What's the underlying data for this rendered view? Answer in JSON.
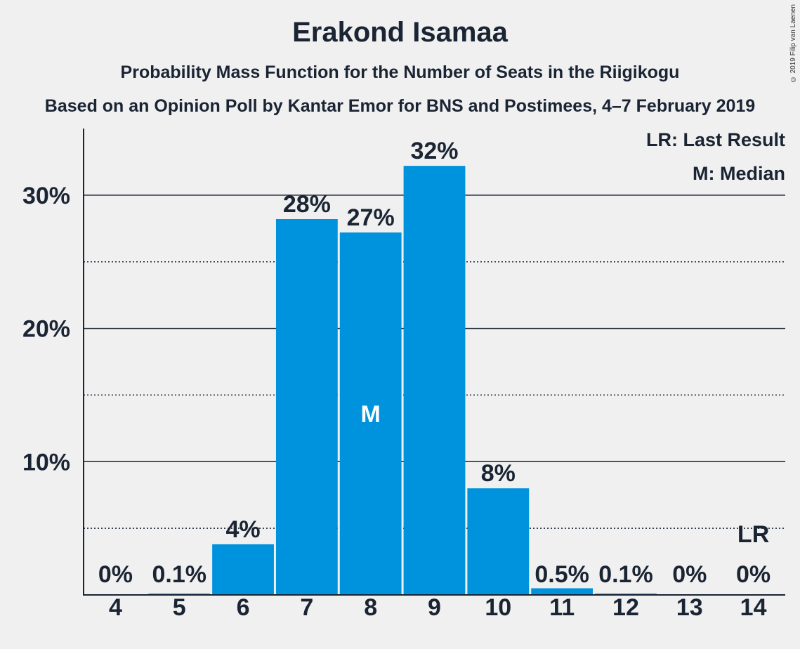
{
  "chart_data": {
    "type": "bar",
    "title": "Erakond Isamaa",
    "subtitle": "Probability Mass Function for the Number of Seats in the Riigikogu",
    "subtitle2": "Based on an Opinion Poll by Kantar Emor for BNS and Postimees, 4–7 February 2019",
    "categories": [
      "4",
      "5",
      "6",
      "7",
      "8",
      "9",
      "10",
      "11",
      "12",
      "13",
      "14"
    ],
    "values": [
      0,
      0.1,
      3.8,
      28.2,
      27.2,
      32.2,
      8.0,
      0.5,
      0.1,
      0,
      0
    ],
    "labels": [
      "0%",
      "0.1%",
      "4%",
      "28%",
      "27%",
      "32%",
      "8%",
      "0.5%",
      "0.1%",
      "0%",
      "0%"
    ],
    "ylim": [
      0,
      35
    ],
    "yticks": [
      10,
      20,
      30
    ],
    "ytick_labels": [
      "10%",
      "20%",
      "30%"
    ],
    "minor_gridlines": [
      5,
      15,
      25
    ],
    "median_seat": "8",
    "median_marker": "M",
    "last_result_seat": "14",
    "last_result_marker": "LR",
    "legend": [
      "LR: Last Result",
      "M: Median"
    ],
    "legend_position": "top-right",
    "bar_color": "#0093dd"
  },
  "copyright": "© 2019 Filip van Laenen"
}
